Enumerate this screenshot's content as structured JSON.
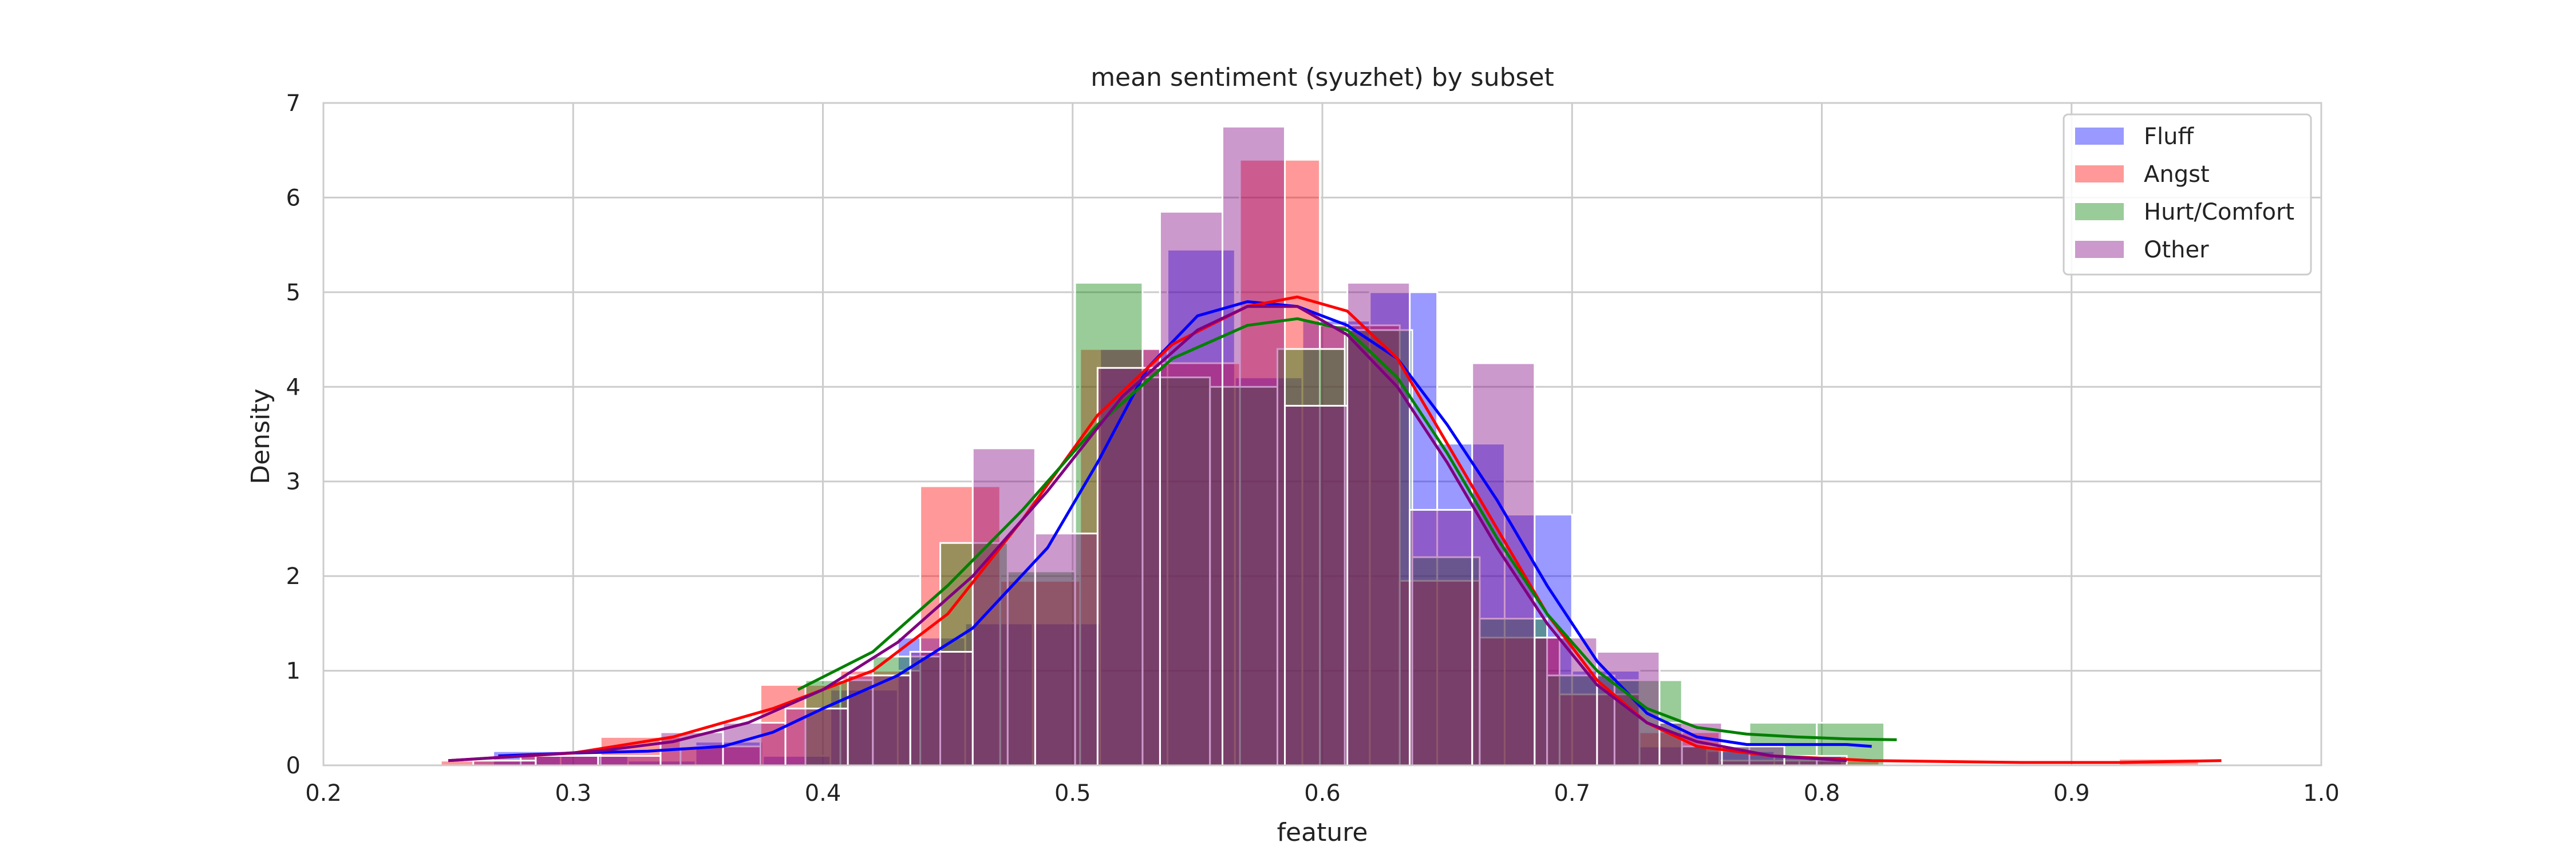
{
  "chart_data": {
    "type": "histogram",
    "title": "mean sentiment (syuzhet) by subset",
    "xlabel": "feature",
    "ylabel": "Density",
    "xlim": [
      0.2,
      1.0
    ],
    "ylim": [
      0,
      7
    ],
    "xticks": [
      "0.2",
      "0.3",
      "0.4",
      "0.5",
      "0.6",
      "0.7",
      "0.8",
      "0.9",
      "1.0"
    ],
    "yticks": [
      "0",
      "1",
      "2",
      "3",
      "4",
      "5",
      "6",
      "7"
    ],
    "grid": true,
    "legend_position": "top-right",
    "series": [
      {
        "name": "Fluff",
        "color": "#0000ff",
        "bins": [
          [
            0.268,
            0.295,
            0.15
          ],
          [
            0.295,
            0.322,
            0.1
          ],
          [
            0.322,
            0.349,
            0.05
          ],
          [
            0.349,
            0.376,
            0.25
          ],
          [
            0.376,
            0.403,
            0.1
          ],
          [
            0.403,
            0.43,
            0.8
          ],
          [
            0.43,
            0.457,
            1.35
          ],
          [
            0.457,
            0.484,
            1.5
          ],
          [
            0.484,
            0.511,
            1.5
          ],
          [
            0.511,
            0.538,
            4.4
          ],
          [
            0.538,
            0.565,
            5.45
          ],
          [
            0.565,
            0.592,
            4.1
          ],
          [
            0.592,
            0.619,
            4.7
          ],
          [
            0.619,
            0.646,
            5.0
          ],
          [
            0.646,
            0.673,
            3.4
          ],
          [
            0.673,
            0.7,
            2.65
          ],
          [
            0.7,
            0.727,
            1.0
          ],
          [
            0.727,
            0.754,
            0.2
          ],
          [
            0.754,
            0.781,
            0.15
          ],
          [
            0.781,
            0.808,
            0.1
          ]
        ],
        "kde": [
          [
            0.27,
            0.1
          ],
          [
            0.3,
            0.13
          ],
          [
            0.33,
            0.15
          ],
          [
            0.36,
            0.2
          ],
          [
            0.38,
            0.35
          ],
          [
            0.4,
            0.6
          ],
          [
            0.43,
            0.95
          ],
          [
            0.46,
            1.45
          ],
          [
            0.49,
            2.3
          ],
          [
            0.51,
            3.2
          ],
          [
            0.53,
            4.2
          ],
          [
            0.55,
            4.75
          ],
          [
            0.57,
            4.9
          ],
          [
            0.59,
            4.85
          ],
          [
            0.61,
            4.65
          ],
          [
            0.63,
            4.3
          ],
          [
            0.65,
            3.6
          ],
          [
            0.67,
            2.8
          ],
          [
            0.69,
            1.9
          ],
          [
            0.71,
            1.1
          ],
          [
            0.73,
            0.55
          ],
          [
            0.75,
            0.3
          ],
          [
            0.77,
            0.22
          ],
          [
            0.79,
            0.22
          ],
          [
            0.81,
            0.22
          ],
          [
            0.82,
            0.2
          ]
        ]
      },
      {
        "name": "Angst",
        "color": "#ff0000",
        "bins": [
          [
            0.247,
            0.279,
            0.05
          ],
          [
            0.279,
            0.311,
            0.1
          ],
          [
            0.311,
            0.343,
            0.3
          ],
          [
            0.343,
            0.375,
            0.2
          ],
          [
            0.375,
            0.407,
            0.85
          ],
          [
            0.407,
            0.439,
            1.0
          ],
          [
            0.439,
            0.471,
            2.95
          ],
          [
            0.471,
            0.503,
            1.95
          ],
          [
            0.503,
            0.535,
            4.4
          ],
          [
            0.535,
            0.567,
            4.25
          ],
          [
            0.567,
            0.599,
            6.4
          ],
          [
            0.599,
            0.631,
            4.65
          ],
          [
            0.631,
            0.663,
            1.95
          ],
          [
            0.663,
            0.695,
            1.35
          ],
          [
            0.695,
            0.727,
            0.75
          ],
          [
            0.727,
            0.759,
            0.35
          ],
          [
            0.759,
            0.791,
            0.05
          ],
          [
            0.791,
            0.823,
            0.05
          ],
          [
            0.823,
            0.855,
            0.0
          ],
          [
            0.855,
            0.887,
            0.0
          ],
          [
            0.887,
            0.919,
            0.0
          ],
          [
            0.919,
            0.951,
            0.07
          ]
        ],
        "kde": [
          [
            0.25,
            0.05
          ],
          [
            0.3,
            0.13
          ],
          [
            0.34,
            0.3
          ],
          [
            0.38,
            0.6
          ],
          [
            0.42,
            1.0
          ],
          [
            0.45,
            1.6
          ],
          [
            0.48,
            2.6
          ],
          [
            0.51,
            3.7
          ],
          [
            0.54,
            4.45
          ],
          [
            0.57,
            4.85
          ],
          [
            0.59,
            4.95
          ],
          [
            0.61,
            4.8
          ],
          [
            0.63,
            4.3
          ],
          [
            0.65,
            3.4
          ],
          [
            0.67,
            2.5
          ],
          [
            0.69,
            1.6
          ],
          [
            0.71,
            0.9
          ],
          [
            0.73,
            0.45
          ],
          [
            0.75,
            0.2
          ],
          [
            0.78,
            0.1
          ],
          [
            0.82,
            0.05
          ],
          [
            0.88,
            0.03
          ],
          [
            0.92,
            0.03
          ],
          [
            0.96,
            0.05
          ]
        ]
      },
      {
        "name": "Hurt/Comfort",
        "color": "#008000",
        "bins": [
          [
            0.393,
            0.42,
            0.9
          ],
          [
            0.42,
            0.447,
            1.15
          ],
          [
            0.447,
            0.474,
            2.35
          ],
          [
            0.474,
            0.501,
            2.05
          ],
          [
            0.501,
            0.528,
            5.1
          ],
          [
            0.528,
            0.555,
            4.1
          ],
          [
            0.555,
            0.582,
            4.0
          ],
          [
            0.582,
            0.609,
            4.4
          ],
          [
            0.609,
            0.636,
            4.6
          ],
          [
            0.636,
            0.663,
            2.2
          ],
          [
            0.663,
            0.69,
            1.55
          ],
          [
            0.69,
            0.717,
            0.95
          ],
          [
            0.717,
            0.744,
            0.9
          ],
          [
            0.744,
            0.771,
            0.2
          ],
          [
            0.771,
            0.798,
            0.45
          ],
          [
            0.798,
            0.825,
            0.45
          ]
        ],
        "kde": [
          [
            0.39,
            0.8
          ],
          [
            0.42,
            1.2
          ],
          [
            0.45,
            1.9
          ],
          [
            0.48,
            2.7
          ],
          [
            0.51,
            3.6
          ],
          [
            0.54,
            4.3
          ],
          [
            0.57,
            4.65
          ],
          [
            0.59,
            4.72
          ],
          [
            0.61,
            4.6
          ],
          [
            0.63,
            4.1
          ],
          [
            0.65,
            3.3
          ],
          [
            0.67,
            2.4
          ],
          [
            0.69,
            1.6
          ],
          [
            0.71,
            1.0
          ],
          [
            0.73,
            0.6
          ],
          [
            0.75,
            0.4
          ],
          [
            0.77,
            0.33
          ],
          [
            0.79,
            0.3
          ],
          [
            0.81,
            0.28
          ],
          [
            0.83,
            0.27
          ]
        ]
      },
      {
        "name": "Other",
        "color": "#800080",
        "bins": [
          [
            0.26,
            0.285,
            0.05
          ],
          [
            0.285,
            0.31,
            0.1
          ],
          [
            0.31,
            0.335,
            0.1
          ],
          [
            0.335,
            0.36,
            0.35
          ],
          [
            0.36,
            0.385,
            0.45
          ],
          [
            0.385,
            0.41,
            0.6
          ],
          [
            0.41,
            0.435,
            0.95
          ],
          [
            0.435,
            0.46,
            1.2
          ],
          [
            0.46,
            0.485,
            3.35
          ],
          [
            0.485,
            0.51,
            2.45
          ],
          [
            0.51,
            0.535,
            4.2
          ],
          [
            0.535,
            0.56,
            5.85
          ],
          [
            0.56,
            0.585,
            6.75
          ],
          [
            0.585,
            0.61,
            3.8
          ],
          [
            0.61,
            0.635,
            5.1
          ],
          [
            0.635,
            0.66,
            2.7
          ],
          [
            0.66,
            0.685,
            4.25
          ],
          [
            0.685,
            0.71,
            1.35
          ],
          [
            0.71,
            0.735,
            1.2
          ],
          [
            0.735,
            0.76,
            0.45
          ],
          [
            0.76,
            0.785,
            0.2
          ],
          [
            0.785,
            0.81,
            0.1
          ]
        ],
        "kde": [
          [
            0.25,
            0.05
          ],
          [
            0.28,
            0.1
          ],
          [
            0.31,
            0.15
          ],
          [
            0.34,
            0.25
          ],
          [
            0.37,
            0.45
          ],
          [
            0.4,
            0.8
          ],
          [
            0.43,
            1.3
          ],
          [
            0.46,
            2.0
          ],
          [
            0.49,
            2.9
          ],
          [
            0.52,
            3.9
          ],
          [
            0.55,
            4.6
          ],
          [
            0.57,
            4.85
          ],
          [
            0.59,
            4.85
          ],
          [
            0.61,
            4.55
          ],
          [
            0.63,
            4.0
          ],
          [
            0.65,
            3.2
          ],
          [
            0.67,
            2.3
          ],
          [
            0.69,
            1.5
          ],
          [
            0.71,
            0.85
          ],
          [
            0.73,
            0.45
          ],
          [
            0.75,
            0.25
          ],
          [
            0.78,
            0.1
          ],
          [
            0.81,
            0.05
          ]
        ]
      }
    ]
  }
}
